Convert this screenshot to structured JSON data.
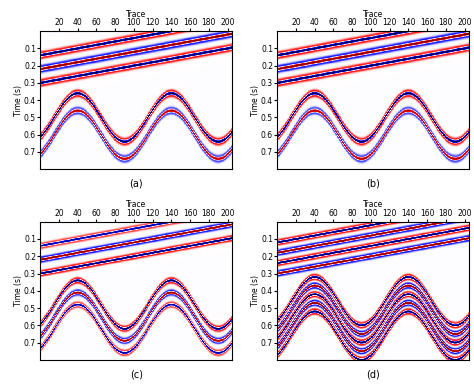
{
  "chart_data": [
    {
      "type": "heatmap",
      "caption": "(a)",
      "xlabel": "Trace",
      "ylabel": "Time (s)",
      "xlim": [
        0,
        205
      ],
      "ylim": [
        0.8,
        0
      ],
      "xticks": [
        20,
        40,
        60,
        80,
        100,
        120,
        140,
        160,
        180,
        200
      ],
      "yticks": [
        0.1,
        0.2,
        0.3,
        0.4,
        0.5,
        0.6,
        0.7
      ],
      "color_range": [
        -1,
        1
      ],
      "peak_frequency": 25,
      "events": [
        {
          "type": "linear",
          "trace_start": 0,
          "trace_end": 200,
          "time_start": 0.14,
          "time_end": -0.06,
          "amplitude": 1
        },
        {
          "type": "linear",
          "trace_start": 0,
          "trace_end": 200,
          "time_start": 0.22,
          "time_end": 0.02,
          "amplitude": -1
        },
        {
          "type": "linear",
          "trace_start": 0,
          "trace_end": 200,
          "time_start": 0.3,
          "time_end": 0.1,
          "amplitude": 1
        },
        {
          "type": "sine",
          "time_center": 0.5,
          "time_amplitude": 0.14,
          "period": 100,
          "peak_trace": 40,
          "amplitude": 1
        },
        {
          "type": "sine",
          "time_center": 0.6,
          "time_amplitude": 0.14,
          "period": 100,
          "peak_trace": 40,
          "amplitude": -0.8
        }
      ]
    },
    {
      "type": "heatmap",
      "caption": "(b)",
      "xlabel": "Trace",
      "ylabel": "Time (s)",
      "xlim": [
        0,
        205
      ],
      "ylim": [
        0.8,
        0
      ],
      "xticks": [
        20,
        40,
        60,
        80,
        100,
        120,
        140,
        160,
        180,
        200
      ],
      "yticks": [
        0.1,
        0.2,
        0.3,
        0.4,
        0.5,
        0.6,
        0.7
      ],
      "color_range": [
        -1,
        1
      ],
      "peak_frequency": 25,
      "events": [
        {
          "type": "linear",
          "trace_start": 0,
          "trace_end": 200,
          "time_start": 0.14,
          "time_end": -0.06,
          "amplitude": 1
        },
        {
          "type": "linear",
          "trace_start": 0,
          "trace_end": 200,
          "time_start": 0.22,
          "time_end": 0.02,
          "amplitude": -1
        },
        {
          "type": "linear",
          "trace_start": 0,
          "trace_end": 200,
          "time_start": 0.3,
          "time_end": 0.1,
          "amplitude": 1
        },
        {
          "type": "sine",
          "time_center": 0.5,
          "time_amplitude": 0.14,
          "period": 100,
          "peak_trace": 40,
          "amplitude": 1
        },
        {
          "type": "sine",
          "time_center": 0.6,
          "time_amplitude": 0.14,
          "period": 100,
          "peak_trace": 40,
          "amplitude": -0.8
        }
      ]
    },
    {
      "type": "heatmap",
      "caption": "(c)",
      "xlabel": "Trace",
      "ylabel": "Time (s)",
      "xlim": [
        0,
        205
      ],
      "ylim": [
        0.8,
        0
      ],
      "xticks": [
        20,
        40,
        60,
        80,
        100,
        120,
        140,
        160,
        180,
        200
      ],
      "yticks": [
        0.1,
        0.2,
        0.3,
        0.4,
        0.5,
        0.6,
        0.7
      ],
      "color_range": [
        -1,
        1
      ],
      "peak_frequency": 30,
      "events": [
        {
          "type": "linear",
          "trace_start": 0,
          "trace_end": 200,
          "time_start": 0.14,
          "time_end": -0.06,
          "amplitude": 0.8
        },
        {
          "type": "linear",
          "trace_start": 0,
          "trace_end": 200,
          "time_start": 0.22,
          "time_end": 0.02,
          "amplitude": -1
        },
        {
          "type": "linear",
          "trace_start": 0,
          "trace_end": 200,
          "time_start": 0.3,
          "time_end": 0.1,
          "amplitude": 1
        },
        {
          "type": "sine",
          "time_center": 0.48,
          "time_amplitude": 0.14,
          "period": 100,
          "peak_trace": 40,
          "amplitude": 1
        },
        {
          "type": "sine",
          "time_center": 0.55,
          "time_amplitude": 0.14,
          "period": 100,
          "peak_trace": 40,
          "amplitude": -0.9
        },
        {
          "type": "sine",
          "time_center": 0.62,
          "time_amplitude": 0.14,
          "period": 100,
          "peak_trace": 40,
          "amplitude": 0.8
        }
      ]
    },
    {
      "type": "heatmap",
      "caption": "(d)",
      "xlabel": "Trace",
      "ylabel": "Time (s)",
      "xlim": [
        0,
        205
      ],
      "ylim": [
        0.8,
        0
      ],
      "xticks": [
        20,
        40,
        60,
        80,
        100,
        120,
        140,
        160,
        180,
        200
      ],
      "yticks": [
        0.1,
        0.2,
        0.3,
        0.4,
        0.5,
        0.6,
        0.7
      ],
      "color_range": [
        -1,
        1
      ],
      "peak_frequency": 30,
      "events": [
        {
          "type": "linear",
          "trace_start": 0,
          "trace_end": 200,
          "time_start": 0.12,
          "time_end": -0.08,
          "amplitude": 1
        },
        {
          "type": "linear",
          "trace_start": 0,
          "trace_end": 200,
          "time_start": 0.18,
          "time_end": -0.02,
          "amplitude": -1
        },
        {
          "type": "linear",
          "trace_start": 0,
          "trace_end": 200,
          "time_start": 0.24,
          "time_end": 0.04,
          "amplitude": 1
        },
        {
          "type": "linear",
          "trace_start": 0,
          "trace_end": 200,
          "time_start": 0.3,
          "time_end": 0.1,
          "amplitude": -1
        },
        {
          "type": "sine",
          "time_center": 0.46,
          "time_amplitude": 0.14,
          "period": 100,
          "peak_trace": 40,
          "amplitude": 1
        },
        {
          "type": "sine",
          "time_center": 0.51,
          "time_amplitude": 0.14,
          "period": 100,
          "peak_trace": 40,
          "amplitude": -1
        },
        {
          "type": "sine",
          "time_center": 0.56,
          "time_amplitude": 0.14,
          "period": 100,
          "peak_trace": 40,
          "amplitude": 1
        },
        {
          "type": "sine",
          "time_center": 0.61,
          "time_amplitude": 0.14,
          "period": 100,
          "peak_trace": 40,
          "amplitude": -1
        },
        {
          "type": "sine",
          "time_center": 0.66,
          "time_amplitude": 0.14,
          "period": 100,
          "peak_trace": 40,
          "amplitude": 1
        }
      ]
    }
  ]
}
